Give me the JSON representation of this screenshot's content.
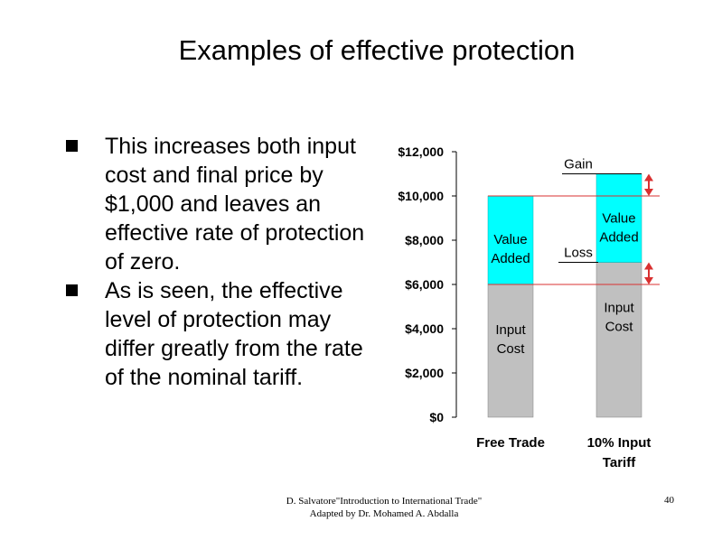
{
  "slide": {
    "title": "Examples of effective protection",
    "bullets": [
      "This increases both input cost and final price by $1,000 and leaves an effective rate of protection of zero.",
      "As is seen, the effective level of protection may differ greatly from the rate of the nominal tariff."
    ],
    "footer_line1": "D. Salvatore\"Introduction to International Trade\"",
    "footer_line2": "Adapted by Dr. Mohamed A. Abdalla",
    "page_number": "40"
  },
  "colors": {
    "input_cost": "#c0c0c0",
    "value_added": "#00ffff",
    "reference_lines": "#d93030",
    "arrows": "#d93030",
    "axis": "#000000"
  },
  "chart_data": {
    "type": "bar",
    "stacked": true,
    "categories": [
      "Free Trade",
      "10% Input Tariff"
    ],
    "series": [
      {
        "name": "Input Cost",
        "values": [
          6000,
          7000
        ]
      },
      {
        "name": "Value Added",
        "values": [
          4000,
          4000
        ]
      }
    ],
    "ylim": [
      0,
      12000
    ],
    "yticks": [
      "$0",
      "$2,000",
      "$4,000",
      "$6,000",
      "$8,000",
      "$10,000",
      "$12,000"
    ],
    "ytick_values": [
      0,
      2000,
      4000,
      6000,
      8000,
      10000,
      12000
    ],
    "annotations": [
      {
        "text": "Gain",
        "from": 10000,
        "to": 11000
      },
      {
        "text": "Loss",
        "from": 6000,
        "to": 7000
      }
    ],
    "grid": false
  }
}
